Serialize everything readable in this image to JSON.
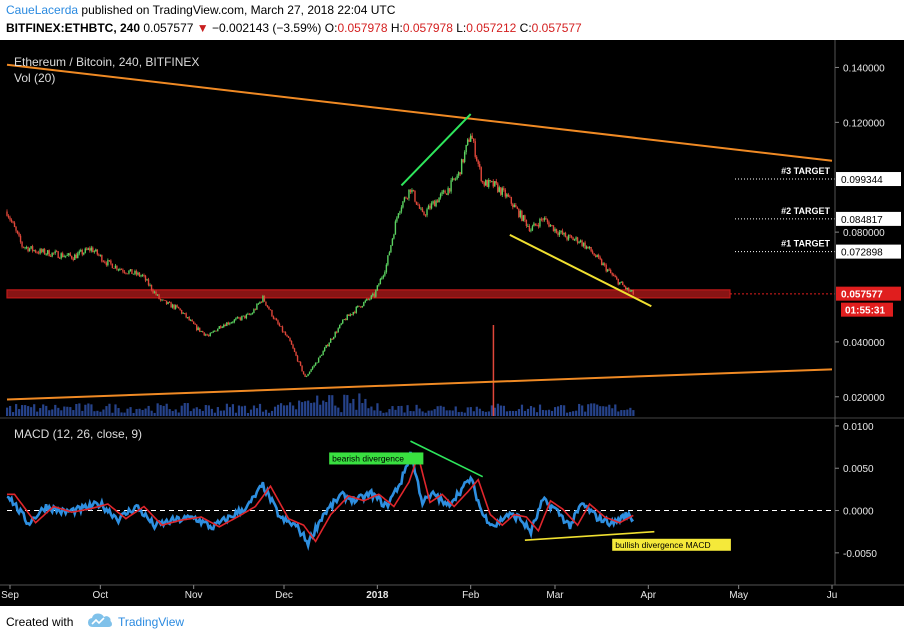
{
  "header": {
    "username": "CaueLacerda",
    "published": "published on TradingView.com, March 27, 2018 22:04 UTC",
    "symbol": "BITFINEX:ETHBTC, 240",
    "price": "0.057577",
    "change": "−0.002143 (−3.59%)",
    "o_label": "O:",
    "o_value": "0.057978",
    "h_label": "H:",
    "h_value": "0.057978",
    "l_label": "L:",
    "l_value": "0.057212",
    "c_label": "C:",
    "c_value": "0.057577"
  },
  "chart_data": {
    "type": "candlestick",
    "title": "Ethereum / Bitcoin, 240, BITFINEX",
    "volume_label": "Vol (20)",
    "colors": {
      "background": "#000000",
      "up": "#5bd160",
      "down": "#e0473a",
      "trendline": "#f08a24",
      "green_line": "#2ee65c",
      "yellow_line": "#f0e030",
      "macd": "#2e8fe0",
      "signal": "#e0262c",
      "volume": "#2a4a9a",
      "last_price": "#e01e1e"
    },
    "x_ticks": [
      "Sep",
      "Oct",
      "Nov",
      "Dec",
      "2018",
      "Feb",
      "Mar",
      "Apr",
      "May",
      "Ju"
    ],
    "y_ticks": [
      "0.140000",
      "0.120000",
      "0.080000",
      "0.040000",
      "0.020000"
    ],
    "ylim": [
      0.013,
      0.15
    ],
    "price_path": [
      [
        "2017-09-01",
        0.085
      ],
      [
        "2017-09-05",
        0.075
      ],
      [
        "2017-09-10",
        0.073
      ],
      [
        "2017-09-16",
        0.072
      ],
      [
        "2017-09-22",
        0.071
      ],
      [
        "2017-09-28",
        0.074
      ],
      [
        "2017-10-03",
        0.069
      ],
      [
        "2017-10-09",
        0.066
      ],
      [
        "2017-10-15",
        0.064
      ],
      [
        "2017-10-21",
        0.055
      ],
      [
        "2017-10-27",
        0.052
      ],
      [
        "2017-11-02",
        0.045
      ],
      [
        "2017-11-06",
        0.042
      ],
      [
        "2017-11-10",
        0.046
      ],
      [
        "2017-11-15",
        0.048
      ],
      [
        "2017-11-20",
        0.05
      ],
      [
        "2017-11-24",
        0.056
      ],
      [
        "2017-11-28",
        0.048
      ],
      [
        "2017-12-03",
        0.04
      ],
      [
        "2017-12-08",
        0.027
      ],
      [
        "2017-12-12",
        0.033
      ],
      [
        "2017-12-16",
        0.04
      ],
      [
        "2017-12-21",
        0.048
      ],
      [
        "2017-12-26",
        0.053
      ],
      [
        "2017-12-31",
        0.057
      ],
      [
        "2018-01-04",
        0.068
      ],
      [
        "2018-01-08",
        0.088
      ],
      [
        "2018-01-12",
        0.096
      ],
      [
        "2018-01-16",
        0.086
      ],
      [
        "2018-01-20",
        0.091
      ],
      [
        "2018-01-24",
        0.095
      ],
      [
        "2018-01-28",
        0.101
      ],
      [
        "2018-02-01",
        0.116
      ],
      [
        "2018-02-05",
        0.098
      ],
      [
        "2018-02-09",
        0.097
      ],
      [
        "2018-02-13",
        0.093
      ],
      [
        "2018-02-17",
        0.087
      ],
      [
        "2018-02-21",
        0.081
      ],
      [
        "2018-02-25",
        0.085
      ],
      [
        "2018-03-01",
        0.081
      ],
      [
        "2018-03-05",
        0.078
      ],
      [
        "2018-03-09",
        0.077
      ],
      [
        "2018-03-13",
        0.073
      ],
      [
        "2018-03-17",
        0.068
      ],
      [
        "2018-03-21",
        0.063
      ],
      [
        "2018-03-25",
        0.059
      ],
      [
        "2018-03-27",
        0.057577
      ]
    ],
    "resistance_level": 0.0575,
    "target_lines": [
      {
        "label": "#3 TARGET",
        "value": 0.099344,
        "tag": "0.099344"
      },
      {
        "label": "#2 TARGET",
        "value": 0.084817,
        "tag": "0.084817"
      },
      {
        "label": "#1 TARGET",
        "value": 0.072898,
        "tag": "0.072898"
      }
    ],
    "last_price": {
      "value": 0.057577,
      "tag": "0.057577",
      "countdown": "01:55:31"
    },
    "trendlines": [
      {
        "color": "orange",
        "from": [
          "2017-08-31",
          0.141
        ],
        "to": [
          "2018-06-01",
          0.106
        ]
      },
      {
        "color": "orange",
        "from": [
          "2017-08-31",
          0.019
        ],
        "to": [
          "2018-06-01",
          0.03
        ]
      },
      {
        "color": "green",
        "from": [
          "2018-01-09",
          0.097
        ],
        "to": [
          "2018-02-01",
          0.123
        ]
      },
      {
        "color": "yellow",
        "from": [
          "2018-02-14",
          0.079
        ],
        "to": [
          "2018-04-02",
          0.053
        ]
      }
    ],
    "macd": {
      "label": "MACD (12, 26, close, 9)",
      "y_ticks": [
        "0.0100",
        "0.0050",
        "0.0000",
        "-0.0050"
      ],
      "ylim": [
        -0.0088,
        0.0107
      ],
      "path": [
        [
          "2017-09-01",
          0.0015
        ],
        [
          "2017-09-07",
          -0.0015
        ],
        [
          "2017-09-13",
          0.0005
        ],
        [
          "2017-09-19",
          -0.0002
        ],
        [
          "2017-09-25",
          0.0002
        ],
        [
          "2017-10-01",
          0.0008
        ],
        [
          "2017-10-07",
          -0.001
        ],
        [
          "2017-10-13",
          0.0005
        ],
        [
          "2017-10-19",
          -0.0018
        ],
        [
          "2017-10-25",
          -0.0012
        ],
        [
          "2017-11-01",
          -0.0008
        ],
        [
          "2017-11-07",
          -0.002
        ],
        [
          "2017-11-13",
          -0.0008
        ],
        [
          "2017-11-19",
          0.0005
        ],
        [
          "2017-11-24",
          0.003
        ],
        [
          "2017-11-30",
          -0.001
        ],
        [
          "2017-12-05",
          -0.0018
        ],
        [
          "2017-12-09",
          -0.0038
        ],
        [
          "2017-12-14",
          -0.0005
        ],
        [
          "2017-12-20",
          0.0018
        ],
        [
          "2017-12-25",
          0.0012
        ],
        [
          "2017-12-30",
          0.002
        ],
        [
          "2018-01-04",
          0.0005
        ],
        [
          "2018-01-09",
          0.0035
        ],
        [
          "2018-01-12",
          0.0068
        ],
        [
          "2018-01-16",
          0.001
        ],
        [
          "2018-01-20",
          0.002
        ],
        [
          "2018-01-24",
          0.0005
        ],
        [
          "2018-01-29",
          0.0025
        ],
        [
          "2018-02-01",
          0.0038
        ],
        [
          "2018-02-05",
          -0.0005
        ],
        [
          "2018-02-09",
          -0.0018
        ],
        [
          "2018-02-13",
          -0.0005
        ],
        [
          "2018-02-17",
          -0.0008
        ],
        [
          "2018-02-21",
          -0.0025
        ],
        [
          "2018-02-25",
          0.0012
        ],
        [
          "2018-03-01",
          0.0002
        ],
        [
          "2018-03-06",
          -0.0018
        ],
        [
          "2018-03-10",
          0.0008
        ],
        [
          "2018-03-15",
          -0.0008
        ],
        [
          "2018-03-20",
          -0.0015
        ],
        [
          "2018-03-25",
          -0.0005
        ],
        [
          "2018-03-27",
          -0.001
        ]
      ],
      "divergence_lines": [
        {
          "color": "green",
          "from": [
            "2018-01-12",
            0.0082
          ],
          "to": [
            "2018-02-05",
            0.004
          ]
        },
        {
          "color": "yellow",
          "from": [
            "2018-02-19",
            -0.0035
          ],
          "to": [
            "2018-04-03",
            -0.0025
          ]
        }
      ],
      "annotations": [
        {
          "text": "bearish divergence",
          "at": [
            "2017-12-16",
            0.0058
          ],
          "bg": "#39e040"
        },
        {
          "text": "bullish divergence MACD",
          "at": [
            "2018-03-20",
            -0.0044
          ],
          "bg": "#f5e93a"
        }
      ]
    },
    "volume_spike": [
      "2018-02-01",
      1.0
    ]
  },
  "footer": {
    "created_with": "Created with",
    "brand": "TradingView"
  }
}
